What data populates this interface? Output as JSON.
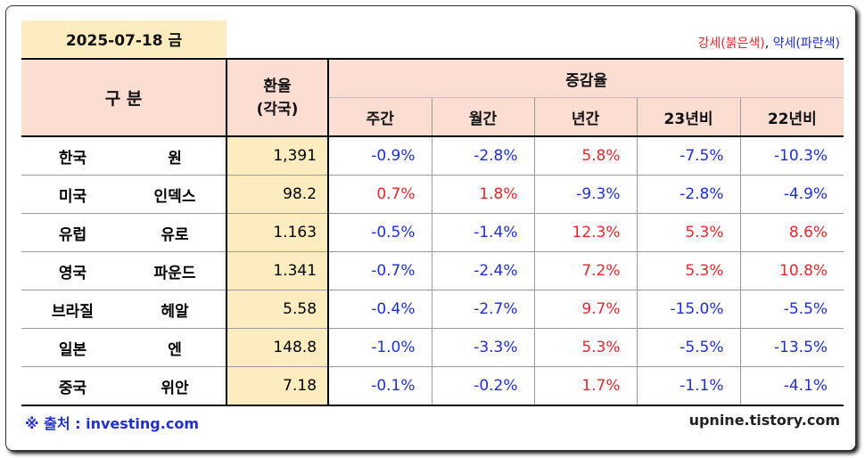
{
  "date_label": "2025-07-18 금",
  "legend": {
    "strong": "강세(붉은색)",
    "separator": ", ",
    "weak": "약세(파란색)"
  },
  "header": {
    "category": "구 분",
    "rate_line1": "환율",
    "rate_line2": "(각국)",
    "change_group": "증감율",
    "cols": [
      "주간",
      "월간",
      "년간",
      "23년비",
      "22년비"
    ]
  },
  "rows": [
    {
      "country": "한국",
      "currency": "원",
      "rate": "1,391",
      "values": [
        "-0.9%",
        "-2.8%",
        "5.8%",
        "-7.5%",
        "-10.3%"
      ],
      "signs": [
        "neg",
        "neg",
        "pos",
        "neg",
        "neg"
      ]
    },
    {
      "country": "미국",
      "currency": "인덱스",
      "rate": "98.2",
      "values": [
        "0.7%",
        "1.8%",
        "-9.3%",
        "-2.8%",
        "-4.9%"
      ],
      "signs": [
        "pos",
        "pos",
        "neg",
        "neg",
        "neg"
      ]
    },
    {
      "country": "유럽",
      "currency": "유로",
      "rate": "1.163",
      "values": [
        "-0.5%",
        "-1.4%",
        "12.3%",
        "5.3%",
        "8.6%"
      ],
      "signs": [
        "neg",
        "neg",
        "pos",
        "pos",
        "pos"
      ]
    },
    {
      "country": "영국",
      "currency": "파운드",
      "rate": "1.341",
      "values": [
        "-0.7%",
        "-2.4%",
        "7.2%",
        "5.3%",
        "10.8%"
      ],
      "signs": [
        "neg",
        "neg",
        "pos",
        "pos",
        "pos"
      ]
    },
    {
      "country": "브라질",
      "currency": "헤알",
      "rate": "5.58",
      "values": [
        "-0.4%",
        "-2.7%",
        "9.7%",
        "-15.0%",
        "-5.5%"
      ],
      "signs": [
        "neg",
        "neg",
        "pos",
        "neg",
        "neg"
      ]
    },
    {
      "country": "일본",
      "currency": "엔",
      "rate": "148.8",
      "values": [
        "-1.0%",
        "-3.3%",
        "5.3%",
        "-5.5%",
        "-13.5%"
      ],
      "signs": [
        "neg",
        "neg",
        "pos",
        "neg",
        "neg"
      ]
    },
    {
      "country": "중국",
      "currency": "위안",
      "rate": "7.18",
      "values": [
        "-0.1%",
        "-0.2%",
        "1.7%",
        "-1.1%",
        "-4.1%"
      ],
      "signs": [
        "neg",
        "neg",
        "pos",
        "neg",
        "neg"
      ]
    }
  ],
  "footer": {
    "source": "※ 출처 : investing.com",
    "site": "upnine.tistory.com"
  },
  "colors": {
    "strong": "#e0282e",
    "weak": "#1f2fd0",
    "header_bg": "#fbddd2",
    "rate_bg": "#fdecc0"
  }
}
